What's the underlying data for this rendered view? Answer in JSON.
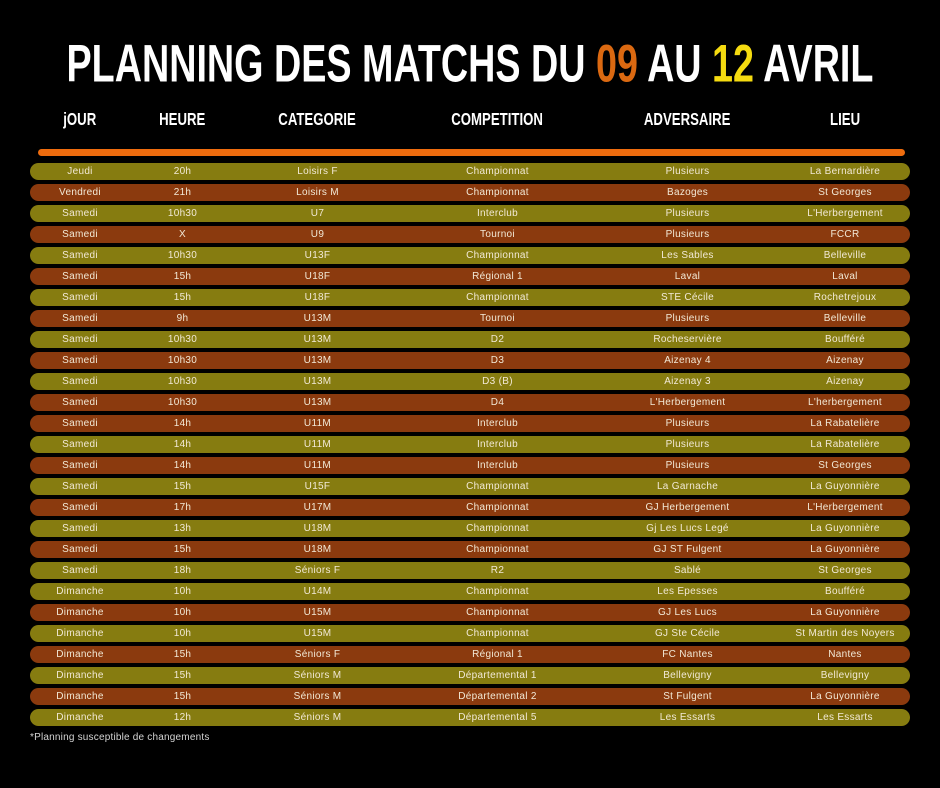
{
  "title": {
    "leading": "PLANNING DES MATCHS DU",
    "day_start": "09",
    "connector": "AU",
    "day_end": "12",
    "trailing": "AVRIL"
  },
  "footer_note": "*Planning susceptible de changements",
  "colors": {
    "background": "#000000",
    "accent_bar": "#EE6C0E",
    "title_day_start": "#DB6911",
    "title_day_end": "#F5DB10",
    "olive": "#867C10",
    "brown": "#8B3A0E",
    "row_text": "#F2E9D6"
  },
  "table": {
    "columns": [
      {
        "key": "jour",
        "label": "jOUR"
      },
      {
        "key": "heure",
        "label": "HEURE"
      },
      {
        "key": "categorie",
        "label": "CATEGORIE"
      },
      {
        "key": "competition",
        "label": "COMPETITION"
      },
      {
        "key": "adversaire",
        "label": "ADVERSAIRE"
      },
      {
        "key": "lieu",
        "label": "LIEU"
      }
    ],
    "rows": [
      {
        "jour": "Jeudi",
        "heure": "20h",
        "categorie": "Loisirs F",
        "competition": "Championnat",
        "adversaire": "Plusieurs",
        "lieu": "La Bernardière",
        "variant": "olive"
      },
      {
        "jour": "Vendredi",
        "heure": "21h",
        "categorie": "Loisirs M",
        "competition": "Championnat",
        "adversaire": "Bazoges",
        "lieu": "St Georges",
        "variant": "brown"
      },
      {
        "jour": "Samedi",
        "heure": "10h30",
        "categorie": "U7",
        "competition": "Interclub",
        "adversaire": "Plusieurs",
        "lieu": "L'Herbergement",
        "variant": "olive"
      },
      {
        "jour": "Samedi",
        "heure": "X",
        "categorie": "U9",
        "competition": "Tournoi",
        "adversaire": "Plusieurs",
        "lieu": "FCCR",
        "variant": "brown"
      },
      {
        "jour": "Samedi",
        "heure": "10h30",
        "categorie": "U13F",
        "competition": "Championnat",
        "adversaire": "Les Sables",
        "lieu": "Belleville",
        "variant": "olive"
      },
      {
        "jour": "Samedi",
        "heure": "15h",
        "categorie": "U18F",
        "competition": "Régional 1",
        "adversaire": "Laval",
        "lieu": "Laval",
        "variant": "brown"
      },
      {
        "jour": "Samedi",
        "heure": "15h",
        "categorie": "U18F",
        "competition": "Championnat",
        "adversaire": "STE Cécile",
        "lieu": "Rochetrejoux",
        "variant": "olive"
      },
      {
        "jour": "Samedi",
        "heure": "9h",
        "categorie": "U13M",
        "competition": "Tournoi",
        "adversaire": "Plusieurs",
        "lieu": "Belleville",
        "variant": "brown"
      },
      {
        "jour": "Samedi",
        "heure": "10h30",
        "categorie": "U13M",
        "competition": "D2",
        "adversaire": "Rocheservière",
        "lieu": "Boufféré",
        "variant": "olive"
      },
      {
        "jour": "Samedi",
        "heure": "10h30",
        "categorie": "U13M",
        "competition": "D3",
        "adversaire": "Aizenay 4",
        "lieu": "Aizenay",
        "variant": "brown"
      },
      {
        "jour": "Samedi",
        "heure": "10h30",
        "categorie": "U13M",
        "competition": "D3 (B)",
        "adversaire": "Aizenay 3",
        "lieu": "Aizenay",
        "variant": "olive"
      },
      {
        "jour": "Samedi",
        "heure": "10h30",
        "categorie": "U13M",
        "competition": "D4",
        "adversaire": "L'Herbergement",
        "lieu": "L'herbergement",
        "variant": "brown"
      },
      {
        "jour": "Samedi",
        "heure": "14h",
        "categorie": "U11M",
        "competition": "Interclub",
        "adversaire": "Plusieurs",
        "lieu": "La Rabatelière",
        "variant": "brown"
      },
      {
        "jour": "Samedi",
        "heure": "14h",
        "categorie": "U11M",
        "competition": "Interclub",
        "adversaire": "Plusieurs",
        "lieu": "La Rabatelière",
        "variant": "olive"
      },
      {
        "jour": "Samedi",
        "heure": "14h",
        "categorie": "U11M",
        "competition": "Interclub",
        "adversaire": "Plusieurs",
        "lieu": "St Georges",
        "variant": "brown"
      },
      {
        "jour": "Samedi",
        "heure": "15h",
        "categorie": "U15F",
        "competition": "Championnat",
        "adversaire": "La Garnache",
        "lieu": "La Guyonnière",
        "variant": "olive"
      },
      {
        "jour": "Samedi",
        "heure": "17h",
        "categorie": "U17M",
        "competition": "Championnat",
        "adversaire": "GJ Herbergement",
        "lieu": "L'Herbergement",
        "variant": "brown"
      },
      {
        "jour": "Samedi",
        "heure": "13h",
        "categorie": "U18M",
        "competition": "Championnat",
        "adversaire": "Gj Les Lucs Legé",
        "lieu": "La Guyonnière",
        "variant": "olive"
      },
      {
        "jour": "Samedi",
        "heure": "15h",
        "categorie": "U18M",
        "competition": "Championnat",
        "adversaire": "GJ ST Fulgent",
        "lieu": "La Guyonnière",
        "variant": "brown"
      },
      {
        "jour": "Samedi",
        "heure": "18h",
        "categorie": "Séniors F",
        "competition": "R2",
        "adversaire": "Sablé",
        "lieu": "St Georges",
        "variant": "olive"
      },
      {
        "jour": "Dimanche",
        "heure": "10h",
        "categorie": "U14M",
        "competition": "Championnat",
        "adversaire": "Les Epesses",
        "lieu": "Boufféré",
        "variant": "olive"
      },
      {
        "jour": "Dimanche",
        "heure": "10h",
        "categorie": "U15M",
        "competition": "Championnat",
        "adversaire": "GJ Les Lucs",
        "lieu": "La Guyonnière",
        "variant": "brown"
      },
      {
        "jour": "Dimanche",
        "heure": "10h",
        "categorie": "U15M",
        "competition": "Championnat",
        "adversaire": "GJ Ste Cécile",
        "lieu": "St Martin des Noyers",
        "variant": "olive"
      },
      {
        "jour": "Dimanche",
        "heure": "15h",
        "categorie": "Séniors F",
        "competition": "Régional 1",
        "adversaire": "FC Nantes",
        "lieu": "Nantes",
        "variant": "brown"
      },
      {
        "jour": "Dimanche",
        "heure": "15h",
        "categorie": "Séniors M",
        "competition": "Départemental 1",
        "adversaire": "Bellevigny",
        "lieu": "Bellevigny",
        "variant": "olive"
      },
      {
        "jour": "Dimanche",
        "heure": "15h",
        "categorie": "Séniors M",
        "competition": "Départemental 2",
        "adversaire": "St Fulgent",
        "lieu": "La Guyonnière",
        "variant": "brown"
      },
      {
        "jour": "Dimanche",
        "heure": "12h",
        "categorie": "Séniors M",
        "competition": "Départemental 5",
        "adversaire": "Les Essarts",
        "lieu": "Les Essarts",
        "variant": "olive"
      }
    ]
  }
}
